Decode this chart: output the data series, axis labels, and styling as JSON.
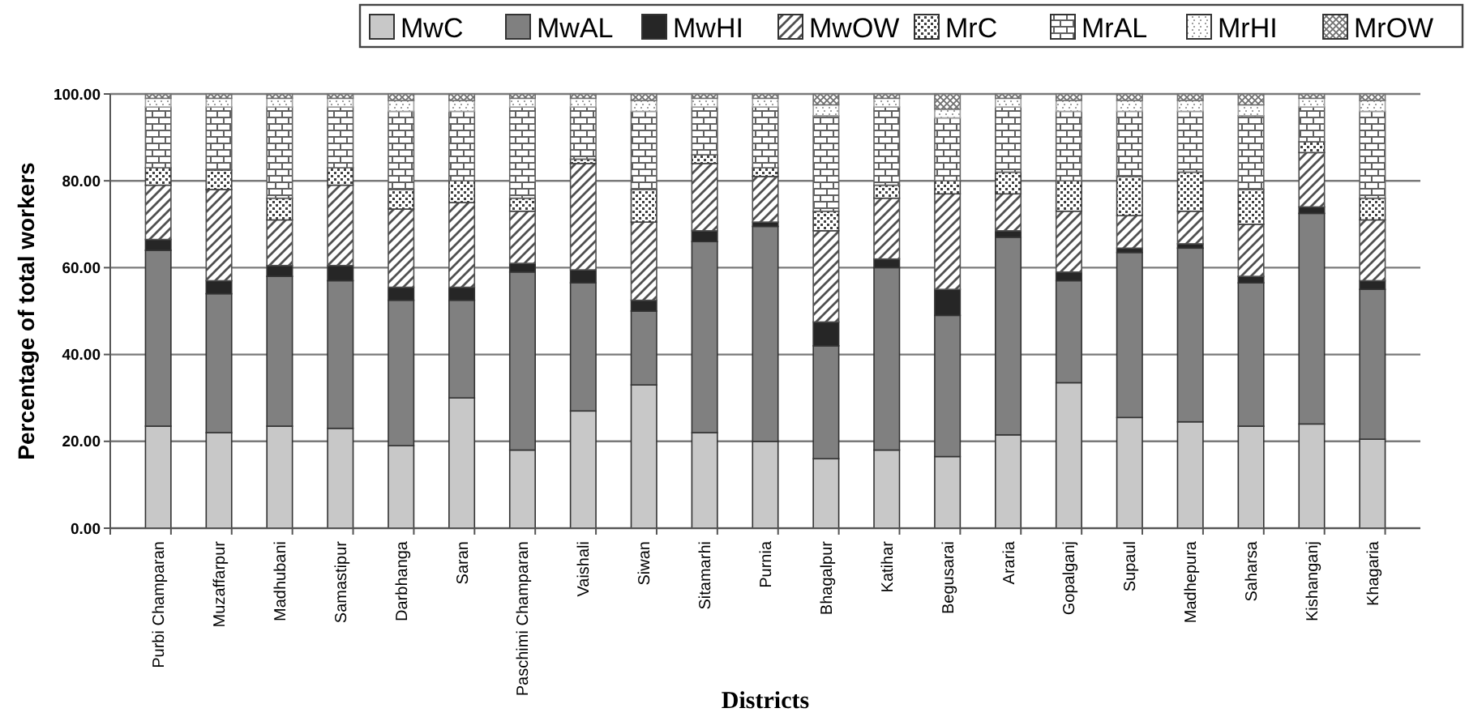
{
  "chart_data": {
    "type": "bar",
    "stacked": true,
    "xlabel": "Districts",
    "ylabel": "Percentage of total workers",
    "categories": [
      "Purbi Champaran",
      "Muzaffarpur",
      "Madhubani",
      "Samastipur",
      "Darbhanga",
      "Saran",
      "Paschimi Champaran",
      "Vaishali",
      "Siwan",
      "Sitamarhi",
      "Purnia",
      "Bhagalpur",
      "Katihar",
      "Begusarai",
      "Araria",
      "Gopalganj",
      "Supaul",
      "Madhepura",
      "Saharsa",
      "Kishanganj",
      "Khagaria"
    ],
    "series": [
      {
        "name": "MwC",
        "color": "#c8c8c8",
        "values": [
          23.5,
          22,
          23.5,
          23,
          19,
          30,
          18,
          27,
          33,
          22,
          20,
          16,
          18,
          16.5,
          21.5,
          33.5,
          25.5,
          24.5,
          23.5,
          24,
          20.5
        ]
      },
      {
        "name": "MwAL",
        "color": "#808080",
        "values": [
          40.5,
          32,
          34.5,
          34,
          33.5,
          22.5,
          41,
          29.5,
          17,
          44,
          49.5,
          26,
          42,
          32.5,
          45.5,
          23.5,
          38,
          40,
          33,
          48.5,
          34.5
        ]
      },
      {
        "name": "MwHI",
        "color": "#262626",
        "values": [
          2.5,
          3,
          2.5,
          3.5,
          3,
          3,
          2,
          3,
          2.5,
          2.5,
          1,
          5.5,
          2,
          6,
          1.5,
          2,
          1,
          1,
          1.5,
          1.5,
          2
        ]
      },
      {
        "name": "MwOW",
        "color": "#505050",
        "values": [
          12.5,
          21,
          10.5,
          18.5,
          18,
          19.5,
          12,
          24.5,
          18,
          15.5,
          10.5,
          21,
          14,
          22,
          8.5,
          14,
          7.5,
          7.5,
          12,
          12.5,
          14
        ]
      },
      {
        "name": "MrC",
        "color": "#404040",
        "values": [
          4,
          4.5,
          5,
          4,
          4.5,
          5,
          3,
          1,
          7.5,
          2,
          2,
          4.5,
          3,
          3,
          5,
          7,
          9,
          9,
          8,
          2.5,
          5
        ]
      },
      {
        "name": "MrAL",
        "color": "#606060",
        "values": [
          14,
          14.5,
          21,
          14,
          18,
          16,
          21,
          12,
          18,
          11,
          14,
          22,
          18,
          14.5,
          15,
          16,
          15,
          14,
          17,
          8,
          20
        ]
      },
      {
        "name": "MrHI",
        "color": "#a0a0a0",
        "values": [
          2,
          2,
          2,
          2,
          2.5,
          2.5,
          2,
          2,
          2.5,
          2,
          2,
          2.5,
          2,
          2,
          2,
          2.5,
          2.5,
          2.5,
          2.5,
          2,
          2.5
        ]
      },
      {
        "name": "MrOW",
        "color": "#707070",
        "values": [
          1,
          1,
          1,
          1,
          1.5,
          1.5,
          1,
          1,
          1.5,
          1,
          1,
          2.5,
          1,
          3.5,
          1,
          1.5,
          1.5,
          1.5,
          2.5,
          1,
          1.5
        ]
      }
    ],
    "ylim": [
      0,
      100
    ],
    "yticks": [
      {
        "value": 0,
        "label": "0.00"
      },
      {
        "value": 20,
        "label": "20.00"
      },
      {
        "value": 40,
        "label": "40.00"
      },
      {
        "value": 60,
        "label": "60.00"
      },
      {
        "value": 80,
        "label": "80.00"
      },
      {
        "value": 100,
        "label": "100.00"
      }
    ],
    "grid": "y",
    "legend": "top"
  }
}
